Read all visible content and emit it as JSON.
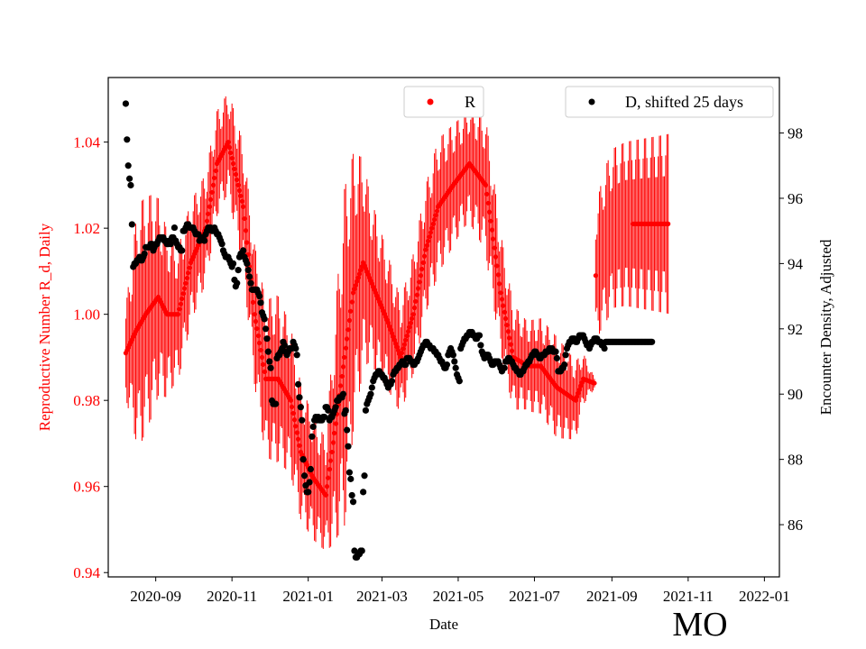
{
  "chart_data": {
    "type": "scatter",
    "title": "",
    "state_label": "MO",
    "xlabel": "Date",
    "ylabel_left": "Reproductive Number R_d, Daily",
    "ylabel_right": "Encounter Density, Adjusted",
    "x_range": [
      "2020-07-25",
      "2022-01-13"
    ],
    "ylim_left": [
      0.939,
      1.055
    ],
    "ylim_right": [
      84.4,
      99.7
    ],
    "x_ticks": [
      {
        "date": "2020-09-01",
        "label": "2020-09"
      },
      {
        "date": "2020-11-01",
        "label": "2020-11"
      },
      {
        "date": "2021-01-01",
        "label": "2021-01"
      },
      {
        "date": "2021-03-01",
        "label": "2021-03"
      },
      {
        "date": "2021-05-01",
        "label": "2021-05"
      },
      {
        "date": "2021-07-01",
        "label": "2021-07"
      },
      {
        "date": "2021-09-01",
        "label": "2021-09"
      },
      {
        "date": "2021-11-01",
        "label": "2021-11"
      },
      {
        "date": "2022-01-01",
        "label": "2022-01"
      }
    ],
    "y_ticks_left": [
      {
        "v": 0.94,
        "label": "0.94"
      },
      {
        "v": 0.96,
        "label": "0.96"
      },
      {
        "v": 0.98,
        "label": "0.98"
      },
      {
        "v": 1.0,
        "label": "1.00"
      },
      {
        "v": 1.02,
        "label": "1.02"
      },
      {
        "v": 1.04,
        "label": "1.04"
      }
    ],
    "y_ticks_right": [
      {
        "v": 86,
        "label": "86"
      },
      {
        "v": 88,
        "label": "88"
      },
      {
        "v": 90,
        "label": "90"
      },
      {
        "v": 92,
        "label": "92"
      },
      {
        "v": 94,
        "label": "94"
      },
      {
        "v": 96,
        "label": "96"
      },
      {
        "v": 98,
        "label": "98"
      }
    ],
    "legend": [
      {
        "label": "R",
        "color": "#ff0000",
        "placement": "top-center"
      },
      {
        "label": "D, shifted 25 days",
        "color": "#000000",
        "placement": "top-right"
      }
    ],
    "colors": {
      "r_series": "#ff0000",
      "d_series": "#000000",
      "left_axis_text": "#ff0000",
      "axis": "#000000"
    },
    "series": [
      {
        "name": "R",
        "axis": "left",
        "start_date": "2020-08-08",
        "step_days": 1,
        "r_knots": [
          [
            0,
            0.991
          ],
          [
            8,
            0.996
          ],
          [
            16,
            1.0
          ],
          [
            26,
            1.004
          ],
          [
            33,
            1.0
          ],
          [
            42,
            1.0
          ],
          [
            52,
            1.012
          ],
          [
            64,
            1.02
          ],
          [
            73,
            1.035
          ],
          [
            82,
            1.04
          ],
          [
            94,
            1.025
          ],
          [
            103,
            1.0
          ],
          [
            112,
            0.985
          ],
          [
            122,
            0.985
          ],
          [
            132,
            0.98
          ],
          [
            140,
            0.968
          ],
          [
            150,
            0.962
          ],
          [
            160,
            0.958
          ],
          [
            165,
            0.968
          ],
          [
            175,
            0.99
          ],
          [
            182,
            1.005
          ],
          [
            190,
            1.012
          ],
          [
            200,
            1.005
          ],
          [
            210,
            0.998
          ],
          [
            220,
            0.99
          ],
          [
            230,
            1.0
          ],
          [
            240,
            1.015
          ],
          [
            250,
            1.025
          ],
          [
            262,
            1.03
          ],
          [
            275,
            1.035
          ],
          [
            288,
            1.03
          ],
          [
            300,
            1.005
          ],
          [
            310,
            0.99
          ],
          [
            322,
            0.988
          ],
          [
            332,
            0.988
          ],
          [
            345,
            0.983
          ],
          [
            360,
            0.98
          ],
          [
            366,
            0.985
          ],
          [
            375,
            0.984
          ],
          [
            376,
            1.009
          ],
          [
            382,
            1.015
          ],
          [
            390,
            1.02
          ],
          [
            400,
            1.021
          ],
          [
            410,
            1.021
          ],
          [
            418,
            1.021
          ],
          [
            425,
            1.021
          ],
          [
            428,
            1.021
          ],
          [
            434,
            1.021
          ]
        ],
        "e_knots": [
          [
            0,
            0.008
          ],
          [
            10,
            0.022
          ],
          [
            20,
            0.02
          ],
          [
            40,
            0.012
          ],
          [
            60,
            0.01
          ],
          [
            80,
            0.009
          ],
          [
            100,
            0.012
          ],
          [
            120,
            0.015
          ],
          [
            140,
            0.012
          ],
          [
            160,
            0.01
          ],
          [
            175,
            0.03
          ],
          [
            195,
            0.015
          ],
          [
            220,
            0.01
          ],
          [
            250,
            0.012
          ],
          [
            270,
            0.01
          ],
          [
            290,
            0.012
          ],
          [
            320,
            0.008
          ],
          [
            345,
            0.009
          ],
          [
            360,
            0.007
          ],
          [
            375,
            0.001
          ],
          [
            376,
            0.012
          ],
          [
            385,
            0.014
          ],
          [
            434,
            0.016
          ]
        ],
        "osc_amp": 0.35,
        "osc_period_days": 6,
        "r_gap_start": 377,
        "r_gap_end": 405
      },
      {
        "name": "D, shifted 25 days",
        "axis": "right",
        "start_date": "2020-08-08",
        "step_days": 1,
        "values": [
          98.9,
          97.8,
          97.0,
          96.6,
          96.4,
          95.2,
          93.9,
          94.0,
          94.0,
          94.1,
          94.1,
          94.2,
          94.1,
          94.1,
          94.2,
          94.3,
          94.5,
          94.5,
          94.5,
          94.5,
          94.6,
          94.6,
          94.4,
          94.5,
          94.6,
          94.6,
          94.7,
          94.8,
          94.8,
          94.8,
          94.8,
          94.7,
          94.7,
          94.6,
          94.6,
          94.7,
          94.6,
          94.8,
          94.8,
          95.1,
          94.7,
          94.6,
          94.5,
          94.5,
          94.4,
          94.4,
          95.0,
          95.0,
          95.1,
          95.2,
          95.2,
          95.1,
          95.1,
          95.1,
          95.1,
          95.0,
          94.9,
          94.9,
          94.9,
          94.7,
          94.8,
          94.8,
          94.8,
          94.7,
          94.9,
          95.0,
          95.1,
          95.1,
          95.1,
          95.0,
          95.0,
          95.1,
          95.0,
          94.9,
          94.9,
          94.8,
          94.7,
          94.6,
          94.4,
          94.3,
          94.2,
          94.2,
          94.2,
          94.1,
          94.0,
          93.9,
          94.0,
          93.5,
          93.3,
          93.4,
          93.8,
          94.2,
          94.3,
          94.3,
          94.4,
          94.2,
          94.1,
          94.0,
          93.8,
          93.6,
          93.4,
          93.2,
          93.2,
          93.2,
          93.2,
          93.2,
          93.1,
          93.0,
          92.8,
          92.5,
          92.4,
          92.3,
          92.0,
          91.7,
          91.3,
          91.0,
          90.8,
          89.8,
          89.7,
          89.7,
          89.7,
          91.1,
          91.2,
          91.2,
          91.3,
          91.4,
          91.6,
          91.5,
          91.3,
          91.2,
          91.3,
          91.4,
          91.4,
          91.4,
          91.6,
          91.5,
          91.4,
          91.2,
          90.3,
          89.9,
          89.6,
          89.2,
          88.0,
          87.5,
          87.2,
          87.0,
          87.0,
          87.3,
          87.7,
          88.7,
          89.0,
          89.2,
          89.3,
          89.2,
          89.3,
          89.2,
          89.2,
          89.2,
          89.3,
          89.3,
          89.6,
          89.6,
          89.5,
          89.2,
          89.3,
          89.3,
          89.4,
          89.5,
          89.6,
          89.8,
          89.8,
          89.9,
          89.9,
          89.9,
          90.0,
          89.4,
          89.5,
          88.9,
          88.4,
          87.6,
          87.4,
          86.9,
          86.7,
          85.2,
          85.0,
          85.0,
          85.1,
          85.1,
          85.2,
          85.2,
          87.0,
          87.5,
          89.5,
          89.7,
          89.8,
          89.9,
          90.0,
          90.2,
          90.4,
          90.5,
          90.6,
          90.6,
          90.7,
          90.7,
          90.6,
          90.6,
          90.5,
          90.5,
          90.4,
          90.3,
          90.2,
          90.3,
          90.3,
          90.4,
          90.6,
          90.7,
          90.7,
          90.8,
          90.8,
          90.9,
          90.9,
          91.0,
          91.0,
          90.9,
          90.9,
          91.1,
          91.1,
          91.1,
          91.0,
          91.0,
          90.9,
          90.9,
          91.0,
          91.0,
          91.1,
          91.2,
          91.3,
          91.4,
          91.5,
          91.5,
          91.6,
          91.6,
          91.5,
          91.5,
          91.4,
          91.4,
          91.4,
          91.3,
          91.3,
          91.2,
          91.2,
          91.1,
          91.0,
          91.0,
          90.9,
          90.8,
          90.8,
          90.9,
          91.2,
          91.3,
          91.4,
          91.3,
          91.2,
          91.0,
          90.8,
          90.6,
          90.5,
          90.4,
          91.4,
          91.5,
          91.6,
          91.7,
          91.7,
          91.8,
          91.8,
          91.9,
          91.9,
          91.9,
          91.8,
          91.8,
          91.7,
          91.7,
          91.8,
          91.8,
          91.5,
          91.3,
          91.2,
          91.1,
          91.2,
          91.2,
          91.2,
          91.1,
          91.0,
          90.9,
          90.9,
          91.0,
          91.0,
          91.0,
          91.0,
          90.9,
          90.8,
          90.7,
          90.8,
          90.8,
          91.0,
          91.0,
          91.1,
          91.1,
          91.0,
          91.0,
          90.9,
          90.8,
          90.8,
          90.7,
          90.7,
          90.6,
          90.6,
          90.7,
          90.7,
          90.8,
          90.9,
          90.9,
          91.0,
          91.0,
          91.1,
          91.2,
          91.2,
          91.3,
          91.3,
          91.2,
          91.2,
          91.1,
          91.1,
          91.2,
          91.2,
          91.2,
          91.3,
          91.3,
          91.3,
          91.4,
          91.4,
          91.4,
          91.3,
          91.3,
          91.3,
          91.1,
          90.7,
          90.7,
          90.7,
          90.8,
          90.8,
          90.9,
          91.2,
          91.4,
          91.5,
          91.6,
          91.6,
          91.7,
          91.7,
          91.7,
          91.6,
          91.6,
          91.7,
          91.8,
          91.8,
          91.8,
          91.8,
          91.7,
          91.6,
          91.5,
          91.5,
          91.4,
          91.5,
          91.6,
          91.6,
          91.7,
          91.7,
          91.7,
          91.6,
          91.6,
          91.6,
          91.5,
          91.5,
          91.4,
          91.6,
          91.6,
          91.6,
          91.6,
          91.6,
          91.6,
          91.6,
          91.6,
          91.6,
          91.6,
          91.6,
          91.6,
          91.6,
          91.6,
          91.6,
          91.6,
          91.6,
          91.6,
          91.6,
          91.6,
          91.6,
          91.6,
          91.6,
          91.6,
          91.6,
          91.6,
          91.6,
          91.6,
          91.6,
          91.6,
          91.6,
          91.6,
          91.6,
          91.6,
          91.6,
          91.6,
          91.6,
          91.6
        ]
      }
    ]
  }
}
